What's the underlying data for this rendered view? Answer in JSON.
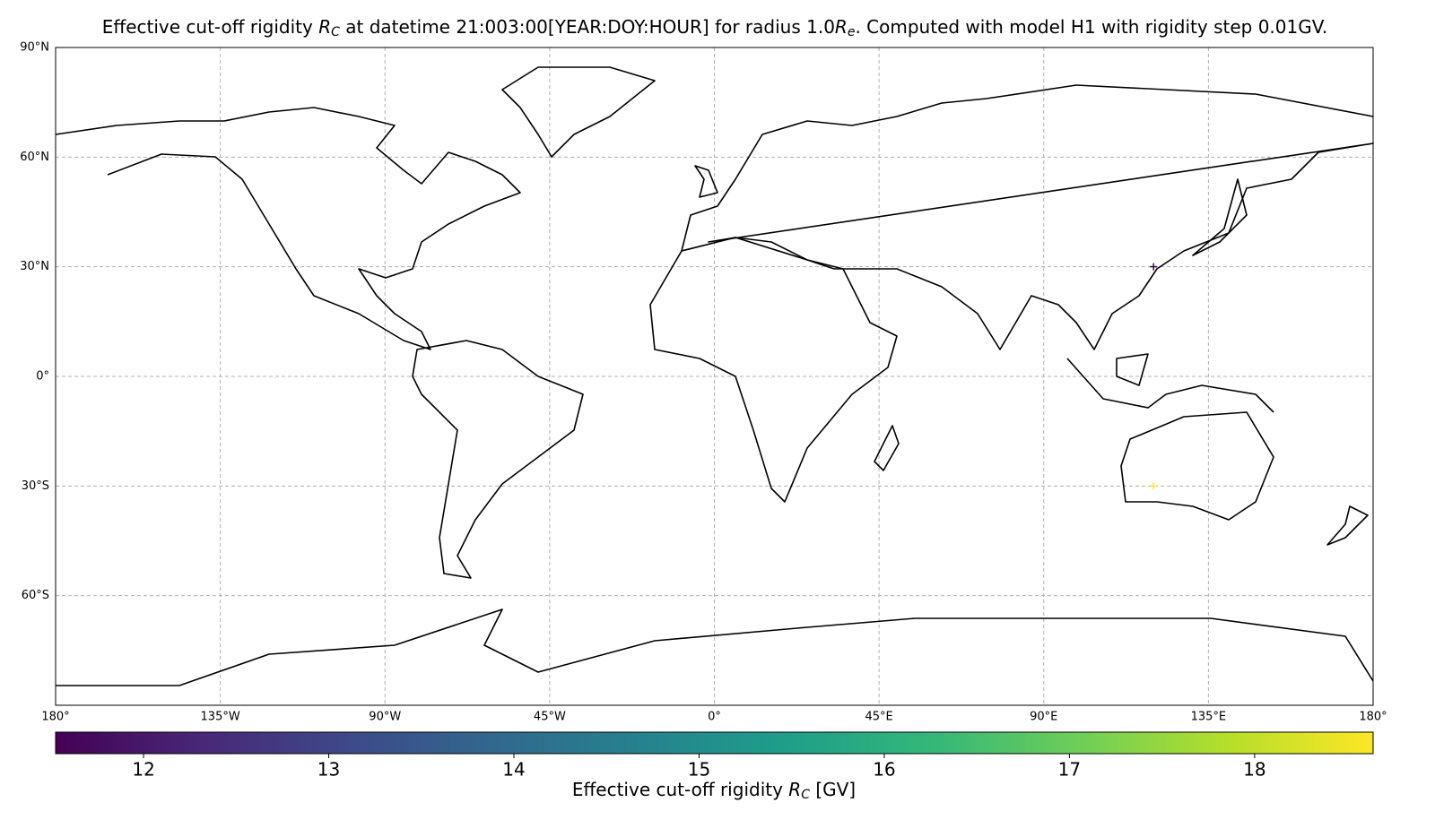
{
  "chart_data": {
    "type": "scatter",
    "title": [
      "Effective cut-off rigidity ",
      "R",
      "C",
      " at datetime 21:003:00[YEAR:DOY:HOUR] for radius 1.0",
      "R",
      "e",
      ". Computed with model H1 with rigidity step 0.01GV."
    ],
    "x": [
      120,
      120
    ],
    "y": [
      30,
      -30
    ],
    "values": [
      11.53,
      18.64
    ],
    "marker": "+",
    "xlim": [
      -180,
      180
    ],
    "ylim": [
      -90,
      90
    ],
    "xticks": [
      {
        "value": -180,
        "label": "180°"
      },
      {
        "value": -135,
        "label": "135°W"
      },
      {
        "value": -90,
        "label": "90°W"
      },
      {
        "value": -45,
        "label": "45°W"
      },
      {
        "value": 0,
        "label": "0°"
      },
      {
        "value": 45,
        "label": "45°E"
      },
      {
        "value": 90,
        "label": "90°E"
      },
      {
        "value": 135,
        "label": "135°E"
      },
      {
        "value": 180,
        "label": "180°"
      }
    ],
    "yticks": [
      {
        "value": 90,
        "label": "90°N"
      },
      {
        "value": 60,
        "label": "60°N"
      },
      {
        "value": 30,
        "label": "30°N"
      },
      {
        "value": 0,
        "label": "0°"
      },
      {
        "value": -30,
        "label": "30°S"
      },
      {
        "value": -60,
        "label": "60°S"
      }
    ],
    "grid": true,
    "colorbar": {
      "label": [
        "Effective cut-off rigidity ",
        "R",
        "C",
        " [GV]"
      ],
      "lim": [
        11.525,
        18.64
      ],
      "ticks": [
        12,
        13,
        14,
        15,
        16,
        17,
        18
      ],
      "colormap": [
        "#440154",
        "#482878",
        "#3e4989",
        "#31688e",
        "#26828e",
        "#1f9e89",
        "#35b779",
        "#6ece58",
        "#b5de2b",
        "#fde725"
      ]
    }
  }
}
